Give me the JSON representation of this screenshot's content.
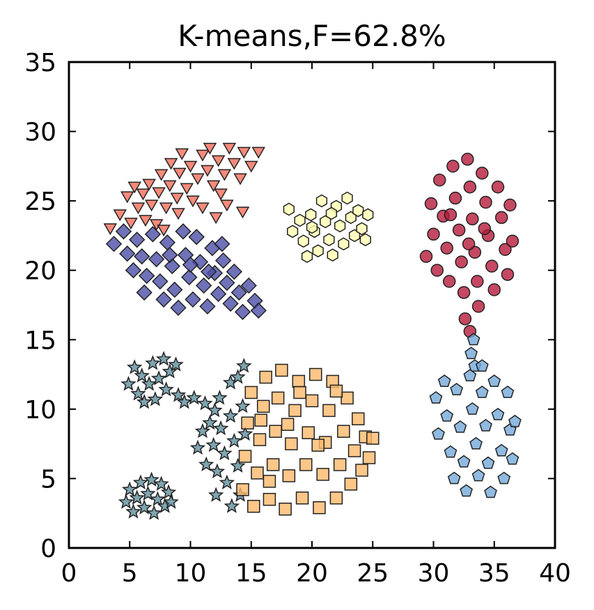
{
  "chart_data": {
    "type": "scatter",
    "title": "K-means,F=62.8%",
    "xlabel": "",
    "ylabel": "",
    "xlim": [
      0,
      40
    ],
    "ylim": [
      0,
      35
    ],
    "xticks": [
      "0",
      "5",
      "10",
      "15",
      "20",
      "25",
      "30",
      "35",
      "40"
    ],
    "yticks": [
      "0",
      "5",
      "10",
      "15",
      "20",
      "25",
      "30",
      "35"
    ],
    "grid": false,
    "legend": "none",
    "series": [
      {
        "marker": "triangle-down-icon",
        "color": "#f46d5a",
        "cluster": {
          "shape": "arc-band",
          "x_range": [
            3.5,
            16
          ],
          "y_range": [
            22.8,
            29
          ]
        },
        "points": [
          [
            3.4,
            23.1
          ],
          [
            4.2,
            24.1
          ],
          [
            5.1,
            23.5
          ],
          [
            4.8,
            25.4
          ],
          [
            5.7,
            24.6
          ],
          [
            6.3,
            23.7
          ],
          [
            5.4,
            26.1
          ],
          [
            6.1,
            25.6
          ],
          [
            6.8,
            24.8
          ],
          [
            7.2,
            23.4
          ],
          [
            6.6,
            26.3
          ],
          [
            7.4,
            25.7
          ],
          [
            8.0,
            24.6
          ],
          [
            7.6,
            27.0
          ],
          [
            8.3,
            26.2
          ],
          [
            8.9,
            25.3
          ],
          [
            8.4,
            27.8
          ],
          [
            9.1,
            27.1
          ],
          [
            9.7,
            26.0
          ],
          [
            9.3,
            28.5
          ],
          [
            10.0,
            27.6
          ],
          [
            10.6,
            26.7
          ],
          [
            10.2,
            25.1
          ],
          [
            11.0,
            28.4
          ],
          [
            11.4,
            27.3
          ],
          [
            11.9,
            26.2
          ],
          [
            11.6,
            28.9
          ],
          [
            12.3,
            28.0
          ],
          [
            12.8,
            27.0
          ],
          [
            12.5,
            25.6
          ],
          [
            13.2,
            28.9
          ],
          [
            13.6,
            27.8
          ],
          [
            14.1,
            26.7
          ],
          [
            14.4,
            28.6
          ],
          [
            15.0,
            27.6
          ],
          [
            15.6,
            28.6
          ],
          [
            13.0,
            24.8
          ],
          [
            11.0,
            24.6
          ],
          [
            9.0,
            24.2
          ],
          [
            7.8,
            23.0
          ],
          [
            12.1,
            23.9
          ],
          [
            14.3,
            24.3
          ]
        ]
      },
      {
        "marker": "diamond-icon",
        "color": "#4b4fa6",
        "cluster": {
          "shape": "blob",
          "x_range": [
            3.5,
            16
          ],
          "y_range": [
            16.8,
            23.4
          ]
        },
        "points": [
          [
            3.7,
            21.9
          ],
          [
            4.5,
            22.8
          ],
          [
            4.8,
            21.2
          ],
          [
            5.3,
            20.0
          ],
          [
            5.6,
            22.2
          ],
          [
            6.0,
            21.0
          ],
          [
            6.4,
            19.6
          ],
          [
            6.2,
            18.4
          ],
          [
            6.9,
            22.6
          ],
          [
            7.2,
            20.8
          ],
          [
            7.5,
            19.2
          ],
          [
            7.8,
            17.9
          ],
          [
            8.1,
            22.0
          ],
          [
            8.5,
            20.3
          ],
          [
            8.7,
            18.6
          ],
          [
            9.0,
            17.3
          ],
          [
            9.4,
            22.8
          ],
          [
            9.6,
            21.1
          ],
          [
            9.9,
            19.5
          ],
          [
            10.2,
            17.9
          ],
          [
            10.5,
            22.4
          ],
          [
            10.8,
            20.6
          ],
          [
            11.1,
            18.9
          ],
          [
            11.4,
            17.4
          ],
          [
            11.8,
            21.6
          ],
          [
            12.0,
            19.8
          ],
          [
            12.3,
            18.3
          ],
          [
            12.7,
            20.7
          ],
          [
            13.0,
            19.1
          ],
          [
            13.3,
            17.6
          ],
          [
            13.6,
            19.9
          ],
          [
            14.0,
            18.4
          ],
          [
            14.3,
            17.0
          ],
          [
            14.8,
            18.9
          ],
          [
            15.3,
            17.8
          ],
          [
            15.6,
            17.1
          ],
          [
            8.3,
            21.1
          ],
          [
            10.0,
            20.4
          ],
          [
            11.5,
            19.9
          ],
          [
            12.6,
            21.9
          ]
        ]
      },
      {
        "marker": "hexagon-icon",
        "color": "#ffffb2",
        "cluster": {
          "shape": "blob",
          "x_range": [
            18,
            25
          ],
          "y_range": [
            20.8,
            25.3
          ]
        },
        "points": [
          [
            18.1,
            24.4
          ],
          [
            18.4,
            22.8
          ],
          [
            19.0,
            23.6
          ],
          [
            19.3,
            22.1
          ],
          [
            19.6,
            21.0
          ],
          [
            19.9,
            24.0
          ],
          [
            20.2,
            22.8
          ],
          [
            20.5,
            21.4
          ],
          [
            20.8,
            25.0
          ],
          [
            21.1,
            23.5
          ],
          [
            21.4,
            22.2
          ],
          [
            21.7,
            21.1
          ],
          [
            22.0,
            24.6
          ],
          [
            22.3,
            23.2
          ],
          [
            22.6,
            21.9
          ],
          [
            22.9,
            25.2
          ],
          [
            23.2,
            23.8
          ],
          [
            23.5,
            22.5
          ],
          [
            23.8,
            24.3
          ],
          [
            24.1,
            23.0
          ],
          [
            24.4,
            22.2
          ],
          [
            24.6,
            24.0
          ],
          [
            20.0,
            23.1
          ],
          [
            21.6,
            24.1
          ]
        ]
      },
      {
        "marker": "circle-icon",
        "color": "#b51a3a",
        "cluster": {
          "shape": "blob",
          "x_range": [
            29,
            37
          ],
          "y_range": [
            15.5,
            28.2
          ]
        },
        "points": [
          [
            29.4,
            21.0
          ],
          [
            29.8,
            24.8
          ],
          [
            30.0,
            22.6
          ],
          [
            30.3,
            20.0
          ],
          [
            30.5,
            26.5
          ],
          [
            30.8,
            23.9
          ],
          [
            31.1,
            21.6
          ],
          [
            31.3,
            19.2
          ],
          [
            31.6,
            27.5
          ],
          [
            31.8,
            25.2
          ],
          [
            32.1,
            22.9
          ],
          [
            32.3,
            20.6
          ],
          [
            32.5,
            18.4
          ],
          [
            32.8,
            28.0
          ],
          [
            33.0,
            26.0
          ],
          [
            33.2,
            23.7
          ],
          [
            33.4,
            21.3
          ],
          [
            33.6,
            19.2
          ],
          [
            33.7,
            17.4
          ],
          [
            34.0,
            27.0
          ],
          [
            34.3,
            24.9
          ],
          [
            34.5,
            22.5
          ],
          [
            34.8,
            20.3
          ],
          [
            35.0,
            18.6
          ],
          [
            35.3,
            26.0
          ],
          [
            35.6,
            23.8
          ],
          [
            35.9,
            21.5
          ],
          [
            36.1,
            19.7
          ],
          [
            36.3,
            24.7
          ],
          [
            36.5,
            22.1
          ],
          [
            32.6,
            16.5
          ],
          [
            33.0,
            15.6
          ],
          [
            31.4,
            24.0
          ],
          [
            34.2,
            23.0
          ],
          [
            32.9,
            21.9
          ]
        ]
      },
      {
        "marker": "pentagon-icon",
        "color": "#74a9d8",
        "cluster": {
          "shape": "blob",
          "x_range": [
            29.8,
            37
          ],
          "y_range": [
            3.8,
            15.2
          ]
        },
        "points": [
          [
            33.3,
            15.0
          ],
          [
            33.1,
            14.0
          ],
          [
            33.4,
            13.1
          ],
          [
            30.2,
            10.8
          ],
          [
            30.4,
            8.2
          ],
          [
            30.9,
            12.0
          ],
          [
            31.1,
            9.5
          ],
          [
            31.4,
            6.9
          ],
          [
            31.7,
            5.0
          ],
          [
            31.9,
            11.4
          ],
          [
            32.2,
            8.7
          ],
          [
            32.5,
            6.2
          ],
          [
            32.7,
            4.1
          ],
          [
            33.0,
            12.4
          ],
          [
            33.2,
            10.0
          ],
          [
            33.5,
            7.5
          ],
          [
            33.7,
            5.2
          ],
          [
            34.0,
            11.2
          ],
          [
            34.3,
            8.8
          ],
          [
            34.5,
            6.1
          ],
          [
            34.7,
            4.0
          ],
          [
            35.0,
            12.0
          ],
          [
            35.3,
            9.6
          ],
          [
            35.6,
            7.0
          ],
          [
            35.8,
            5.0
          ],
          [
            36.1,
            11.2
          ],
          [
            36.3,
            8.5
          ],
          [
            36.5,
            6.4
          ],
          [
            36.7,
            9.1
          ],
          [
            34.0,
            13.1
          ]
        ]
      },
      {
        "marker": "star-icon",
        "color": "#5f8f9c",
        "cluster": {
          "shape": "three-groups",
          "x_range": [
            4.5,
            15
          ],
          "y_range": [
            2.2,
            14
          ]
        },
        "points": [
          [
            4.9,
            11.8
          ],
          [
            5.4,
            13.0
          ],
          [
            5.7,
            11.1
          ],
          [
            6.0,
            12.4
          ],
          [
            6.2,
            10.5
          ],
          [
            6.6,
            11.8
          ],
          [
            6.9,
            13.3
          ],
          [
            7.1,
            10.7
          ],
          [
            7.4,
            12.2
          ],
          [
            7.8,
            13.6
          ],
          [
            8.0,
            11.4
          ],
          [
            8.3,
            12.7
          ],
          [
            8.8,
            13.2
          ],
          [
            9.0,
            11.0
          ],
          [
            9.5,
            10.5
          ],
          [
            10.3,
            10.8
          ],
          [
            11.2,
            10.4
          ],
          [
            12.0,
            9.9
          ],
          [
            12.4,
            10.8
          ],
          [
            13.3,
            11.9
          ],
          [
            13.9,
            12.3
          ],
          [
            14.4,
            13.1
          ],
          [
            10.6,
            7.2
          ],
          [
            11.0,
            8.4
          ],
          [
            11.3,
            6.0
          ],
          [
            11.6,
            9.0
          ],
          [
            11.9,
            7.4
          ],
          [
            12.2,
            5.5
          ],
          [
            12.5,
            8.6
          ],
          [
            12.8,
            6.8
          ],
          [
            13.0,
            4.7
          ],
          [
            13.3,
            9.5
          ],
          [
            13.6,
            7.7
          ],
          [
            13.9,
            5.9
          ],
          [
            14.1,
            3.8
          ],
          [
            14.3,
            10.2
          ],
          [
            14.5,
            8.2
          ],
          [
            12.1,
            3.8
          ],
          [
            13.4,
            3.0
          ],
          [
            4.7,
            3.3
          ],
          [
            5.0,
            4.2
          ],
          [
            5.3,
            2.6
          ],
          [
            5.6,
            3.6
          ],
          [
            5.9,
            4.7
          ],
          [
            6.2,
            2.9
          ],
          [
            6.5,
            3.9
          ],
          [
            6.8,
            4.9
          ],
          [
            7.0,
            2.5
          ],
          [
            7.3,
            3.5
          ],
          [
            7.6,
            4.6
          ],
          [
            7.9,
            3.0
          ],
          [
            8.2,
            4.0
          ],
          [
            8.4,
            3.3
          ]
        ]
      },
      {
        "marker": "square-icon",
        "color": "#fdb96b",
        "cluster": {
          "shape": "blob",
          "x_range": [
            14,
            25.5
          ],
          "y_range": [
            2.2,
            13
          ]
        },
        "points": [
          [
            14.3,
            4.2
          ],
          [
            14.5,
            6.6
          ],
          [
            14.7,
            9.0
          ],
          [
            15.0,
            11.2
          ],
          [
            15.2,
            3.0
          ],
          [
            15.5,
            5.4
          ],
          [
            15.7,
            7.8
          ],
          [
            16.0,
            10.2
          ],
          [
            16.2,
            12.3
          ],
          [
            16.5,
            3.5
          ],
          [
            16.8,
            6.0
          ],
          [
            17.0,
            8.4
          ],
          [
            17.2,
            10.8
          ],
          [
            17.5,
            12.8
          ],
          [
            17.8,
            2.8
          ],
          [
            18.1,
            5.2
          ],
          [
            18.3,
            7.5
          ],
          [
            18.6,
            9.9
          ],
          [
            18.9,
            12.0
          ],
          [
            19.2,
            3.6
          ],
          [
            19.5,
            6.0
          ],
          [
            19.7,
            8.3
          ],
          [
            20.0,
            10.6
          ],
          [
            20.3,
            12.5
          ],
          [
            20.6,
            2.9
          ],
          [
            20.9,
            5.3
          ],
          [
            21.1,
            7.6
          ],
          [
            21.4,
            9.9
          ],
          [
            21.7,
            12.0
          ],
          [
            22.0,
            3.6
          ],
          [
            22.3,
            6.0
          ],
          [
            22.6,
            8.4
          ],
          [
            22.9,
            10.8
          ],
          [
            23.2,
            4.6
          ],
          [
            23.5,
            7.0
          ],
          [
            23.8,
            9.3
          ],
          [
            24.1,
            5.6
          ],
          [
            24.4,
            8.0
          ],
          [
            24.7,
            6.5
          ],
          [
            25.0,
            7.9
          ],
          [
            15.8,
            9.2
          ],
          [
            18.0,
            8.9
          ],
          [
            20.5,
            7.4
          ],
          [
            22.0,
            11.3
          ],
          [
            16.5,
            4.8
          ],
          [
            19.0,
            11.2
          ]
        ]
      }
    ]
  }
}
